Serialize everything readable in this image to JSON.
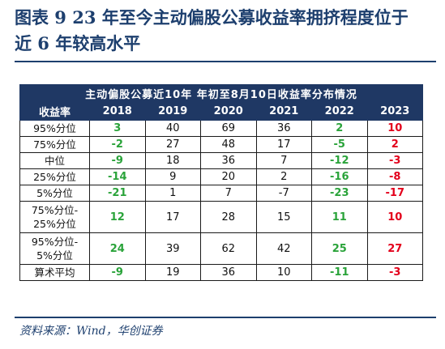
{
  "figure": {
    "title_line1": "图表 9   23 年至今主动偏股公募收益率拥挤程度位于",
    "title_line2": "近 6 年较高水平",
    "source": "资料来源：Wind，华创证券"
  },
  "table": {
    "caption": "主动偏股公募近10年 年初至8月10日收益率分布情况",
    "header_label": "收益率",
    "years": [
      "2018",
      "2019",
      "2020",
      "2021",
      "2022",
      "2023"
    ],
    "rows": [
      {
        "label": [
          "95%分位"
        ],
        "values": [
          "3",
          "40",
          "69",
          "36",
          "2",
          "10"
        ],
        "styles": [
          "g",
          "",
          "",
          "",
          "g",
          "rd"
        ]
      },
      {
        "label": [
          "75%分位"
        ],
        "values": [
          "-2",
          "27",
          "48",
          "17",
          "-5",
          "2"
        ],
        "styles": [
          "g",
          "",
          "",
          "",
          "g",
          "rd"
        ]
      },
      {
        "label": [
          "中位"
        ],
        "values": [
          "-9",
          "18",
          "36",
          "7",
          "-12",
          "-3"
        ],
        "styles": [
          "g",
          "",
          "",
          "",
          "g",
          "rd"
        ]
      },
      {
        "label": [
          "25%分位"
        ],
        "values": [
          "-14",
          "9",
          "20",
          "2",
          "-16",
          "-8"
        ],
        "styles": [
          "g",
          "",
          "",
          "",
          "g",
          "rd"
        ]
      },
      {
        "label": [
          "5%分位"
        ],
        "values": [
          "-21",
          "1",
          "7",
          "-7",
          "-23",
          "-17"
        ],
        "styles": [
          "g",
          "",
          "",
          "",
          "g",
          "rd"
        ]
      },
      {
        "label": [
          "75%分位-",
          "25%分位"
        ],
        "values": [
          "12",
          "17",
          "28",
          "15",
          "11",
          "10"
        ],
        "styles": [
          "g",
          "",
          "",
          "",
          "g",
          "rd"
        ]
      },
      {
        "label": [
          "95%分位-",
          "5%分位"
        ],
        "values": [
          "24",
          "39",
          "62",
          "42",
          "25",
          "27"
        ],
        "styles": [
          "g",
          "",
          "",
          "",
          "g",
          "rd"
        ]
      },
      {
        "label": [
          "算术平均"
        ],
        "values": [
          "-9",
          "19",
          "36",
          "10",
          "-11",
          "-3"
        ],
        "styles": [
          "g",
          "",
          "",
          "",
          "g",
          "rd"
        ]
      }
    ]
  }
}
